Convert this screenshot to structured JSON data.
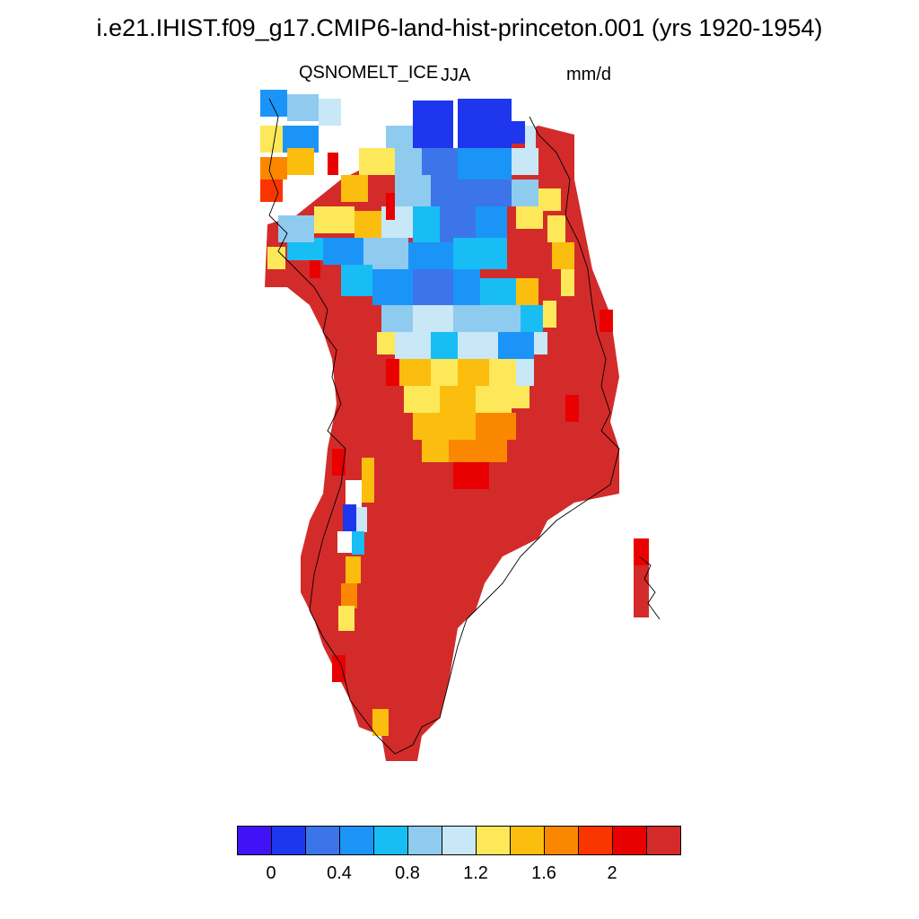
{
  "title": "i.e21.IHIST.f09_g17.CMIP6-land-hist-princeton.001 (yrs 1920-1954)",
  "variable": "QSNOMELT_ICE",
  "season": "JJA",
  "units": "mm/d",
  "region": "Greenland",
  "colorbar": {
    "colors": [
      "#4212f6",
      "#1e36ee",
      "#3b75e9",
      "#1b94f8",
      "#18bdf4",
      "#8ecbef",
      "#c8e7f7",
      "#fde85a",
      "#fbbe0f",
      "#fb8700",
      "#fb3500",
      "#e90000",
      "#d32b2a"
    ],
    "tick_labels": [
      "0",
      "0.4",
      "0.8",
      "1.2",
      "1.6",
      "2"
    ]
  }
}
